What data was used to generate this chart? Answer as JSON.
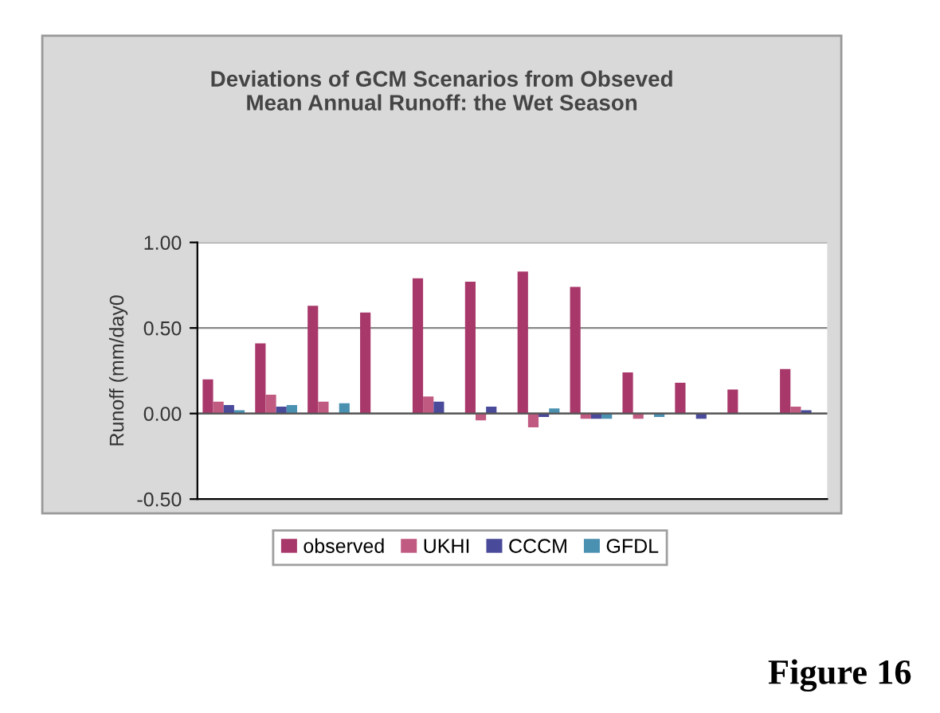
{
  "chart_data": {
    "type": "bar",
    "title": "Deviations of GCM Scenarios from Obseved\nMean Annual Runoff: the Wet Season",
    "ylabel": "Runoff (mm/day0",
    "categories": [
      null,
      null,
      null,
      null,
      null,
      null,
      null,
      null,
      null,
      null,
      null,
      null
    ],
    "series": [
      {
        "name": "observed",
        "color": "#a8386a",
        "values": [
          0.2,
          0.41,
          0.63,
          0.59,
          0.79,
          0.77,
          0.83,
          0.74,
          0.24,
          0.18,
          0.14,
          0.26
        ]
      },
      {
        "name": "UKHI",
        "color": "#c05a80",
        "values": [
          0.07,
          0.11,
          0.07,
          null,
          0.1,
          -0.04,
          -0.08,
          -0.03,
          -0.03,
          0.0,
          0.0,
          0.04
        ]
      },
      {
        "name": "CCCM",
        "color": "#4a4a9a",
        "values": [
          0.05,
          0.04,
          0.0,
          null,
          0.07,
          0.04,
          -0.02,
          -0.03,
          0.0,
          -0.03,
          0.0,
          0.02
        ]
      },
      {
        "name": "GFDL",
        "color": "#4a90b0",
        "values": [
          0.02,
          0.05,
          0.06,
          null,
          0.0,
          null,
          0.03,
          -0.03,
          -0.02,
          0.0,
          0.0,
          0.0
        ]
      }
    ],
    "ylim": [
      -0.5,
      1.0
    ],
    "yticks": [
      {
        "value": -0.5,
        "label": "-0.50"
      },
      {
        "value": 0,
        "label": "0.00"
      },
      {
        "value": 0.5,
        "label": "0.50"
      },
      {
        "value": 1.0,
        "label": "1.00"
      }
    ],
    "grid": "y",
    "legend": "bottom",
    "annotations": [
      "Figure 16"
    ]
  }
}
